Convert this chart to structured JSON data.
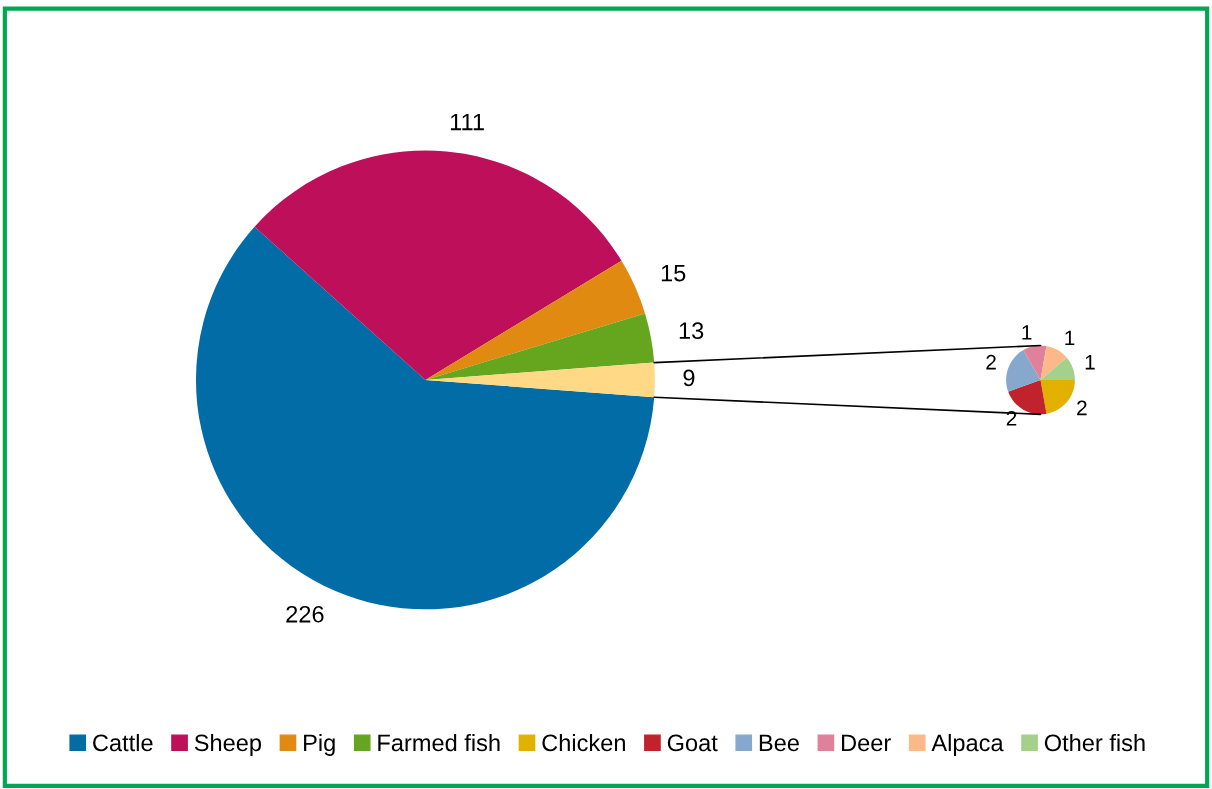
{
  "chart_data": [
    {
      "type": "pie",
      "categories": [
        "Cattle",
        "Sheep",
        "Pig",
        "Farmed fish",
        null
      ],
      "values": [
        226,
        111,
        15,
        13,
        9
      ],
      "colors": [
        "#016ca5",
        "#be0f5a",
        "#e08a12",
        "#66a61e",
        "#ffd986"
      ],
      "data_labels": true,
      "legend": "bottom"
    },
    {
      "type": "pie",
      "categories": [
        "Chicken",
        "Goat",
        "Bee",
        "Deer",
        "Alpaca",
        "Other fish"
      ],
      "values": [
        2,
        2,
        2,
        1,
        1,
        1
      ],
      "colors": [
        "#e2b100",
        "#c0232c",
        "#85a8cc",
        "#e0809a",
        "#fbb98a",
        "#a3d08a"
      ],
      "data_labels": true,
      "legend": "bottom"
    }
  ]
}
